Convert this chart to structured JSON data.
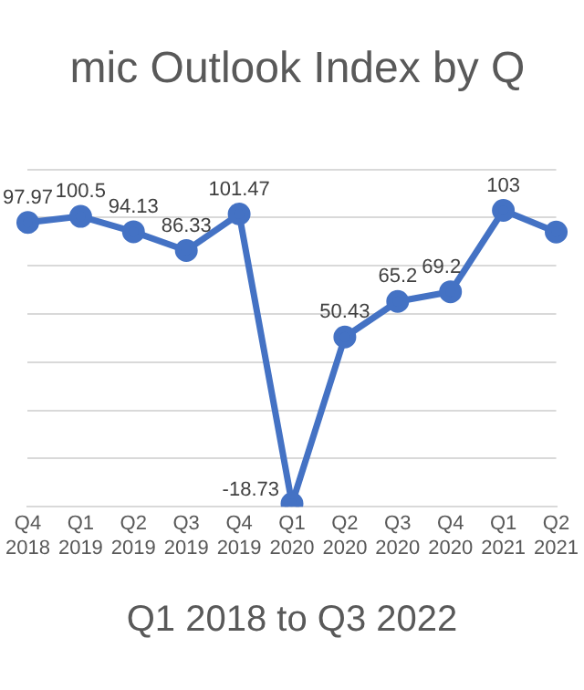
{
  "chart_data": {
    "type": "line",
    "title": "mic Outlook Index by Q",
    "xlabel": "Q1 2018 to Q3 2022",
    "categories": [
      "Q4 2018",
      "Q1 2019",
      "Q2 2019",
      "Q3 2019",
      "Q4 2019",
      "Q1 2020",
      "Q2 2020",
      "Q3 2020",
      "Q4 2020",
      "Q1 2021",
      "Q2 2021"
    ],
    "series": [
      {
        "color": "#4472c4",
        "values": [
          97.97,
          100.5,
          94.13,
          86.33,
          101.47,
          -18.73,
          50.43,
          65.2,
          69.2,
          103,
          94
        ],
        "value_labels": [
          "97.97",
          "100.5",
          "94.13",
          "86.33",
          "101.47",
          "-18.73",
          "50.43",
          "65.2",
          "69.2",
          "103",
          null
        ]
      }
    ],
    "ylim": [
      -20,
      120
    ],
    "yticks": [
      {
        "value": -20,
        "label": null
      },
      {
        "value": 0,
        "label": null
      },
      {
        "value": 20,
        "label": null
      },
      {
        "value": 40,
        "label": null
      },
      {
        "value": 60,
        "label": null
      },
      {
        "value": 80,
        "label": null
      },
      {
        "value": 100,
        "label": null
      },
      {
        "value": 120,
        "label": null
      }
    ],
    "grid": "y",
    "tick_labels": "x",
    "marker": "circle",
    "line_style": "solid",
    "legend": false
  }
}
